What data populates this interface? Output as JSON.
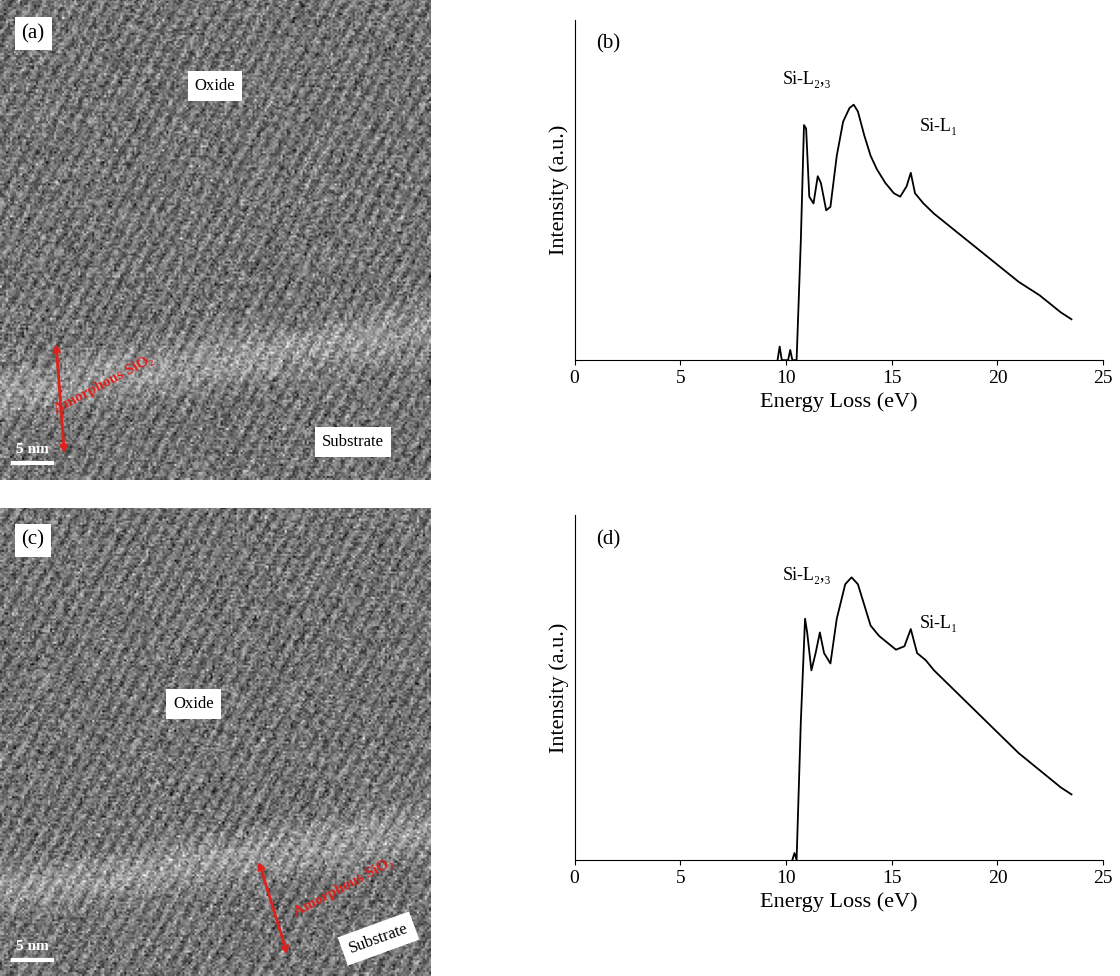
{
  "chart_data": [
    {
      "type": "image",
      "panel": "(a)",
      "annotations": [
        "Oxide",
        "Amorphous SiO₂",
        "Substrate"
      ],
      "scale_bar": "5 nm"
    },
    {
      "type": "line",
      "panel": "(b)",
      "x_label": "Energy Loss (eV)",
      "y_label": "Intensity (a.u.)",
      "x": [
        9.6,
        9.7,
        9.8,
        10.1,
        10.2,
        10.3,
        10.5,
        10.7,
        10.85,
        10.95,
        11.1,
        11.3,
        11.5,
        11.65,
        11.9,
        12.1,
        12.4,
        12.7,
        13.0,
        13.2,
        13.4,
        13.7,
        14.0,
        14.3,
        14.7,
        15.1,
        15.4,
        15.7,
        15.9,
        16.1,
        16.5,
        17.0,
        18.0,
        19.0,
        20.0,
        21.0,
        22.0,
        23.0,
        23.5
      ],
      "values": [
        0.0,
        0.04,
        0.0,
        0.0,
        0.03,
        0.0,
        0.0,
        0.35,
        0.69,
        0.68,
        0.48,
        0.46,
        0.54,
        0.52,
        0.44,
        0.45,
        0.6,
        0.7,
        0.74,
        0.75,
        0.73,
        0.66,
        0.6,
        0.56,
        0.52,
        0.49,
        0.48,
        0.51,
        0.55,
        0.49,
        0.46,
        0.43,
        0.38,
        0.33,
        0.28,
        0.23,
        0.19,
        0.14,
        0.12
      ],
      "color": "#000000",
      "xlim": [
        0,
        25
      ],
      "xticks": [
        0,
        5,
        10,
        15,
        20,
        25
      ],
      "ylim": [
        0,
        1
      ],
      "tick_labels": "x",
      "annotations": [
        "Si-L₂,₃",
        "Si-L₁"
      ]
    },
    {
      "type": "image",
      "panel": "(c)",
      "annotations": [
        "Oxide",
        "Amorphous SiO₂",
        "Substrate"
      ],
      "scale_bar": "5 nm"
    },
    {
      "type": "line",
      "panel": "(d)",
      "x_label": "Energy Loss (eV)",
      "y_label": "Intensity (a.u.)",
      "x": [
        10.3,
        10.4,
        10.5,
        10.7,
        10.9,
        11.0,
        11.2,
        11.4,
        11.6,
        11.8,
        12.1,
        12.4,
        12.8,
        13.1,
        13.4,
        13.7,
        14.0,
        14.4,
        14.8,
        15.2,
        15.6,
        15.9,
        16.2,
        16.6,
        17.0,
        18.0,
        19.0,
        20.0,
        21.0,
        22.0,
        23.0,
        23.5
      ],
      "values": [
        0.0,
        0.02,
        0.0,
        0.4,
        0.7,
        0.66,
        0.55,
        0.6,
        0.66,
        0.6,
        0.57,
        0.7,
        0.8,
        0.82,
        0.8,
        0.74,
        0.68,
        0.65,
        0.63,
        0.61,
        0.62,
        0.67,
        0.6,
        0.58,
        0.55,
        0.49,
        0.43,
        0.37,
        0.31,
        0.26,
        0.21,
        0.19
      ],
      "color": "#000000",
      "xlim": [
        0,
        25
      ],
      "xticks": [
        0,
        5,
        10,
        15,
        20,
        25
      ],
      "ylim": [
        0,
        1
      ],
      "tick_labels": "x",
      "annotations": [
        "Si-L₂,₃",
        "Si-L₁"
      ]
    }
  ]
}
